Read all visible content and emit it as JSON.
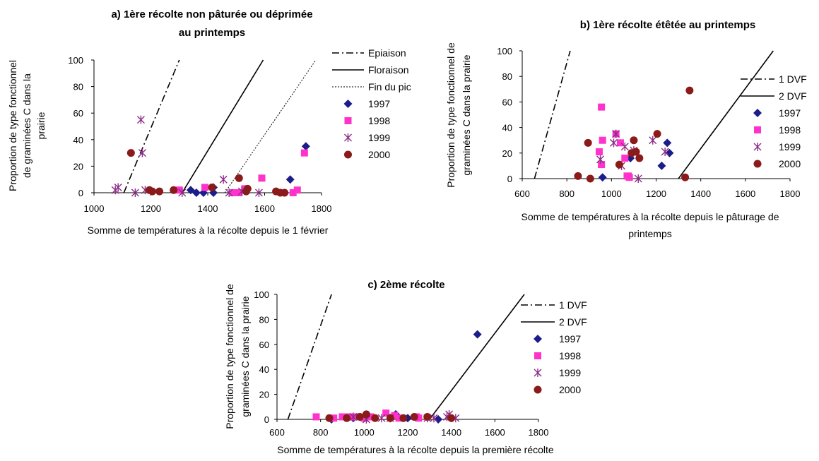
{
  "chart_data": [
    {
      "type": "scatter",
      "title_lines": [
        "a) 1ère récolte non pâturée ou déprimée",
        "au printemps"
      ],
      "xlabel": "Somme de températures à la récolte depuis le 1 février",
      "ylabel_lines": [
        "Proportion de type fonctionnel",
        "de graminées C dans la",
        "prairie"
      ],
      "xlim": [
        1000,
        1800
      ],
      "ylim": [
        0,
        100
      ],
      "xticks": [
        "1000",
        "1200",
        "1400",
        "1600",
        "1800"
      ],
      "yticks": [
        "0",
        "20",
        "40",
        "60",
        "80",
        "100"
      ],
      "lines": [
        {
          "name": "Epiaison",
          "style": "dashdot",
          "points": [
            [
              1105,
              0
            ],
            [
              1300,
              100
            ]
          ]
        },
        {
          "name": "Floraison",
          "style": "solid",
          "points": [
            [
              1310,
              0
            ],
            [
              1595,
              100
            ]
          ]
        },
        {
          "name": "Fin du pic",
          "style": "dotted",
          "points": [
            [
              1460,
              0
            ],
            [
              1780,
              100
            ]
          ]
        }
      ],
      "series": [
        {
          "name": "1997",
          "marker": "diamond",
          "color": "#1c1c8a",
          "points": [
            [
              1340,
              2
            ],
            [
              1360,
              0
            ],
            [
              1385,
              0
            ],
            [
              1420,
              4
            ],
            [
              1420,
              0
            ],
            [
              1690,
              10
            ],
            [
              1745,
              35
            ]
          ]
        },
        {
          "name": "1998",
          "marker": "square",
          "color": "#ff33cc",
          "points": [
            [
              1300,
              2
            ],
            [
              1390,
              4
            ],
            [
              1490,
              0
            ],
            [
              1510,
              0
            ],
            [
              1530,
              3
            ],
            [
              1590,
              11
            ],
            [
              1700,
              0
            ],
            [
              1715,
              2
            ],
            [
              1740,
              30
            ]
          ]
        },
        {
          "name": "1999",
          "marker": "star",
          "color": "#8b2c86",
          "points": [
            [
              1075,
              2
            ],
            [
              1085,
              4
            ],
            [
              1145,
              0
            ],
            [
              1165,
              55
            ],
            [
              1170,
              30
            ],
            [
              1180,
              2
            ],
            [
              1310,
              0
            ],
            [
              1455,
              10
            ],
            [
              1475,
              0
            ],
            [
              1520,
              1
            ],
            [
              1580,
              0
            ]
          ]
        },
        {
          "name": "2000",
          "marker": "circle",
          "color": "#8b1a1a",
          "points": [
            [
              1130,
              30
            ],
            [
              1195,
              2
            ],
            [
              1205,
              1
            ],
            [
              1230,
              1
            ],
            [
              1280,
              2
            ],
            [
              1415,
              4
            ],
            [
              1510,
              11
            ],
            [
              1535,
              1
            ],
            [
              1540,
              3
            ],
            [
              1640,
              1
            ],
            [
              1655,
              0
            ],
            [
              1670,
              0
            ]
          ]
        }
      ],
      "legend": [
        "Epiaison",
        "Floraison",
        "Fin du pic",
        "1997",
        "1998",
        "1999",
        "2000"
      ]
    },
    {
      "type": "scatter",
      "title_lines": [
        "b) 1ère récolte étêtée au printemps"
      ],
      "xlabel": "Somme de températures à la récolte depuis le pâturage de printemps",
      "xlabel_lines": [
        "Somme de températures à la récolte depuis le pâturage de",
        "printemps"
      ],
      "ylabel_lines": [
        "Proportion de type fonctionnel de",
        "graminées C dans la prairie"
      ],
      "xlim": [
        600,
        1800
      ],
      "ylim": [
        0,
        100
      ],
      "xticks": [
        "600",
        "800",
        "1000",
        "1200",
        "1400",
        "1600",
        "1800"
      ],
      "yticks": [
        "0",
        "20",
        "40",
        "60",
        "80",
        "100"
      ],
      "lines": [
        {
          "name": "1 DVF",
          "style": "dashdot",
          "points": [
            [
              655,
              0
            ],
            [
              815,
              100
            ]
          ]
        },
        {
          "name": "2 DVF",
          "style": "solid",
          "points": [
            [
              1300,
              0
            ],
            [
              1725,
              100
            ]
          ]
        }
      ],
      "series": [
        {
          "name": "1997",
          "marker": "diamond",
          "color": "#1c1c8a",
          "points": [
            [
              960,
              1
            ],
            [
              1085,
              16
            ],
            [
              1225,
              10
            ],
            [
              1250,
              28
            ],
            [
              1260,
              20
            ]
          ]
        },
        {
          "name": "1998",
          "marker": "square",
          "color": "#ff33cc",
          "points": [
            [
              945,
              21
            ],
            [
              955,
              11
            ],
            [
              955,
              56
            ],
            [
              960,
              30
            ],
            [
              1020,
              35
            ],
            [
              1040,
              28
            ],
            [
              1060,
              16
            ],
            [
              1070,
              2
            ],
            [
              1075,
              2
            ],
            [
              1080,
              1
            ]
          ]
        },
        {
          "name": "1999",
          "marker": "star",
          "color": "#8b2c86",
          "points": [
            [
              950,
              15
            ],
            [
              1010,
              28
            ],
            [
              1020,
              35
            ],
            [
              1045,
              10
            ],
            [
              1060,
              25
            ],
            [
              1100,
              22
            ],
            [
              1120,
              0
            ],
            [
              1185,
              30
            ],
            [
              1240,
              21
            ]
          ]
        },
        {
          "name": "2000",
          "marker": "circle",
          "color": "#8b1a1a",
          "points": [
            [
              850,
              2
            ],
            [
              895,
              28
            ],
            [
              905,
              0
            ],
            [
              1035,
              11
            ],
            [
              1090,
              20
            ],
            [
              1100,
              30
            ],
            [
              1110,
              21
            ],
            [
              1125,
              16
            ],
            [
              1205,
              35
            ],
            [
              1330,
              1
            ],
            [
              1350,
              69
            ]
          ]
        }
      ],
      "legend": [
        "1 DVF",
        "2 DVF",
        "1997",
        "1998",
        "1999",
        "2000"
      ]
    },
    {
      "type": "scatter",
      "title_lines": [
        "c) 2ème récolte"
      ],
      "xlabel": "Somme de températures à la récolte depuis la première récolte",
      "ylabel_lines": [
        "Proportion de type fonctionnel de",
        "graminées C dans la prairie"
      ],
      "xlim": [
        600,
        1800
      ],
      "ylim": [
        0,
        100
      ],
      "xticks": [
        "600",
        "800",
        "1000",
        "1200",
        "1400",
        "1600",
        "1800"
      ],
      "yticks": [
        "0",
        "20",
        "40",
        "60",
        "80",
        "100"
      ],
      "lines": [
        {
          "name": "1 DVF",
          "style": "dashdot",
          "points": [
            [
              650,
              0
            ],
            [
              850,
              100
            ]
          ]
        },
        {
          "name": "2 DVF",
          "style": "solid",
          "points": [
            [
              1300,
              0
            ],
            [
              1735,
              100
            ]
          ]
        }
      ],
      "series": [
        {
          "name": "1997",
          "marker": "diamond",
          "color": "#1c1c8a",
          "points": [
            [
              850,
              0
            ],
            [
              950,
              1
            ],
            [
              1145,
              4
            ],
            [
              1200,
              1
            ],
            [
              1340,
              0
            ],
            [
              1520,
              68
            ]
          ]
        },
        {
          "name": "1998",
          "marker": "square",
          "color": "#ff33cc",
          "points": [
            [
              780,
              2
            ],
            [
              860,
              1
            ],
            [
              900,
              2
            ],
            [
              930,
              2
            ],
            [
              960,
              2
            ],
            [
              1000,
              1
            ],
            [
              1030,
              2
            ],
            [
              1100,
              5
            ],
            [
              1140,
              3
            ],
            [
              1160,
              1
            ],
            [
              1240,
              2
            ],
            [
              1250,
              1
            ]
          ]
        },
        {
          "name": "1999",
          "marker": "star",
          "color": "#8b2c86",
          "points": [
            [
              950,
              2
            ],
            [
              1010,
              0
            ],
            [
              1080,
              1
            ],
            [
              1120,
              1
            ],
            [
              1290,
              1
            ],
            [
              1320,
              1
            ],
            [
              1380,
              2
            ],
            [
              1390,
              4
            ],
            [
              1420,
              1
            ]
          ]
        },
        {
          "name": "2000",
          "marker": "circle",
          "color": "#8b1a1a",
          "points": [
            [
              840,
              1
            ],
            [
              920,
              1
            ],
            [
              980,
              2
            ],
            [
              1010,
              4
            ],
            [
              1050,
              1
            ],
            [
              1120,
              1
            ],
            [
              1180,
              1
            ],
            [
              1230,
              2
            ],
            [
              1290,
              2
            ],
            [
              1400,
              1
            ]
          ]
        }
      ],
      "legend": [
        "1 DVF",
        "2 DVF",
        "1997",
        "1998",
        "1999",
        "2000"
      ]
    }
  ]
}
